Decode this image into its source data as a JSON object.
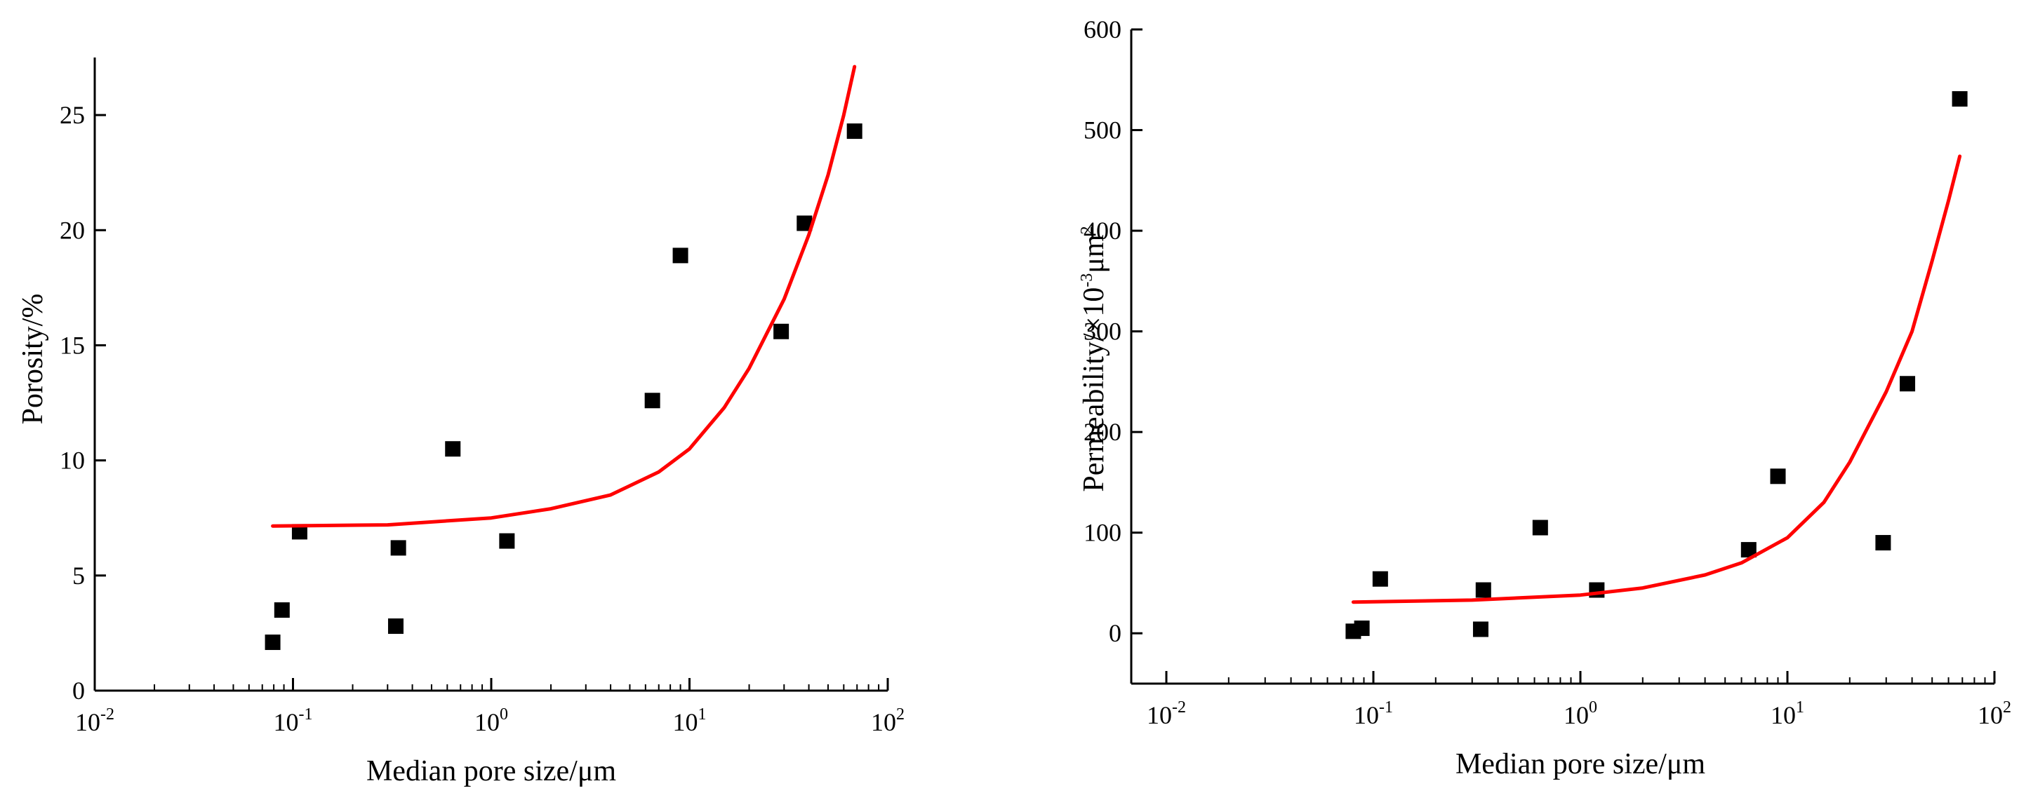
{
  "chart_data": [
    {
      "type": "scatter",
      "xscale": "log",
      "xlim": [
        0.01,
        100
      ],
      "ylim": [
        0,
        27.5
      ],
      "xlabel": "Median pore size/μm",
      "ylabel": "Porosity/%",
      "x_ticks": [
        {
          "base": "10",
          "exp": "-2"
        },
        {
          "base": "10",
          "exp": "-1"
        },
        {
          "base": "10",
          "exp": "0"
        },
        {
          "base": "10",
          "exp": "1"
        },
        {
          "base": "10",
          "exp": "2"
        }
      ],
      "y_ticks": [
        "0",
        "5",
        "10",
        "15",
        "20",
        "25"
      ],
      "series": [
        {
          "marker": "square",
          "color": "#000000",
          "points": [
            {
              "x": 0.079,
              "y": 2.1
            },
            {
              "x": 0.088,
              "y": 3.5
            },
            {
              "x": 0.108,
              "y": 6.9
            },
            {
              "x": 0.33,
              "y": 2.8
            },
            {
              "x": 0.34,
              "y": 6.2
            },
            {
              "x": 0.64,
              "y": 10.5
            },
            {
              "x": 1.2,
              "y": 6.5
            },
            {
              "x": 6.5,
              "y": 12.6
            },
            {
              "x": 9.0,
              "y": 18.9
            },
            {
              "x": 29.0,
              "y": 15.6
            },
            {
              "x": 38.0,
              "y": 20.3
            },
            {
              "x": 68.0,
              "y": 24.3
            }
          ]
        },
        {
          "type": "line",
          "color": "#ff0000",
          "points": [
            {
              "x": 0.079,
              "y": 7.15
            },
            {
              "x": 0.3,
              "y": 7.2
            },
            {
              "x": 1.0,
              "y": 7.5
            },
            {
              "x": 2.0,
              "y": 7.9
            },
            {
              "x": 4.0,
              "y": 8.5
            },
            {
              "x": 7.0,
              "y": 9.5
            },
            {
              "x": 10.0,
              "y": 10.5
            },
            {
              "x": 15.0,
              "y": 12.3
            },
            {
              "x": 20.0,
              "y": 14.0
            },
            {
              "x": 30.0,
              "y": 17.0
            },
            {
              "x": 40.0,
              "y": 19.8
            },
            {
              "x": 50.0,
              "y": 22.4
            },
            {
              "x": 60.0,
              "y": 25.0
            },
            {
              "x": 68.0,
              "y": 27.1
            }
          ]
        }
      ]
    },
    {
      "type": "scatter",
      "xscale": "log",
      "xlim": [
        0.01,
        100
      ],
      "ylim": [
        -50,
        600
      ],
      "xlabel": "Median pore size/μm",
      "ylabel": "Permeability/×10",
      "ylabel_sup": "-3",
      "ylabel_unit": "μm",
      "ylabel_unit_sup": "2",
      "x_ticks": [
        {
          "base": "10",
          "exp": "-2"
        },
        {
          "base": "10",
          "exp": "-1"
        },
        {
          "base": "10",
          "exp": "0"
        },
        {
          "base": "10",
          "exp": "1"
        },
        {
          "base": "10",
          "exp": "2"
        }
      ],
      "y_ticks": [
        "0",
        "100",
        "200",
        "300",
        "400",
        "500",
        "600"
      ],
      "series": [
        {
          "marker": "square",
          "color": "#000000",
          "points": [
            {
              "x": 0.08,
              "y": 2
            },
            {
              "x": 0.088,
              "y": 5
            },
            {
              "x": 0.108,
              "y": 54
            },
            {
              "x": 0.33,
              "y": 4
            },
            {
              "x": 0.34,
              "y": 43
            },
            {
              "x": 0.64,
              "y": 105
            },
            {
              "x": 1.2,
              "y": 43
            },
            {
              "x": 6.5,
              "y": 83
            },
            {
              "x": 9.0,
              "y": 156
            },
            {
              "x": 29.0,
              "y": 90
            },
            {
              "x": 38.0,
              "y": 248
            },
            {
              "x": 68.0,
              "y": 531
            }
          ]
        },
        {
          "type": "line",
          "color": "#ff0000",
          "points": [
            {
              "x": 0.08,
              "y": 31
            },
            {
              "x": 0.3,
              "y": 33
            },
            {
              "x": 1.0,
              "y": 38
            },
            {
              "x": 2.0,
              "y": 45
            },
            {
              "x": 4.0,
              "y": 58
            },
            {
              "x": 6.0,
              "y": 70
            },
            {
              "x": 10.0,
              "y": 95
            },
            {
              "x": 15.0,
              "y": 130
            },
            {
              "x": 20.0,
              "y": 170
            },
            {
              "x": 30.0,
              "y": 240
            },
            {
              "x": 40.0,
              "y": 300
            },
            {
              "x": 50.0,
              "y": 370
            },
            {
              "x": 60.0,
              "y": 430
            },
            {
              "x": 68.0,
              "y": 474
            }
          ]
        }
      ]
    }
  ]
}
